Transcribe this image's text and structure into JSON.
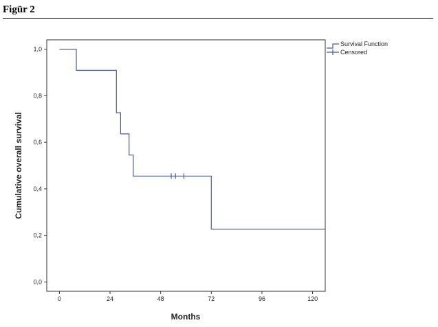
{
  "caption": "Figür 2",
  "chart_data": {
    "type": "line",
    "subtype": "kaplan-meier-step",
    "xlabel": "Months",
    "ylabel": "Cumulative overall survival",
    "xlim": [
      -6,
      126
    ],
    "ylim": [
      -0.04,
      1.04
    ],
    "x_ticks": [
      0,
      24,
      48,
      72,
      96,
      120
    ],
    "x_tick_labels": [
      "0",
      "24",
      "48",
      "72",
      "96",
      "120"
    ],
    "y_ticks": [
      0.0,
      0.2,
      0.4,
      0.6,
      0.8,
      1.0
    ],
    "y_tick_labels": [
      "0,0",
      "0,2",
      "0,4",
      "0,6",
      "0,8",
      "1,0"
    ],
    "legend_position": "top-right, outside plot",
    "series": [
      {
        "name": "Survival Function",
        "color": "#4a5aa8",
        "step_points": [
          [
            0,
            1.0
          ],
          [
            8,
            1.0
          ],
          [
            8,
            0.909
          ],
          [
            27,
            0.909
          ],
          [
            27,
            0.727
          ],
          [
            29,
            0.727
          ],
          [
            29,
            0.636
          ],
          [
            33,
            0.636
          ],
          [
            33,
            0.545
          ],
          [
            35,
            0.545
          ],
          [
            35,
            0.455
          ],
          [
            72,
            0.455
          ],
          [
            72,
            0.227
          ],
          [
            126,
            0.227
          ]
        ]
      },
      {
        "name": "Censored",
        "color": "#4a5aa8",
        "marker": "plus",
        "points": [
          [
            53,
            0.455
          ],
          [
            55,
            0.455
          ],
          [
            59,
            0.455
          ]
        ]
      }
    ]
  }
}
